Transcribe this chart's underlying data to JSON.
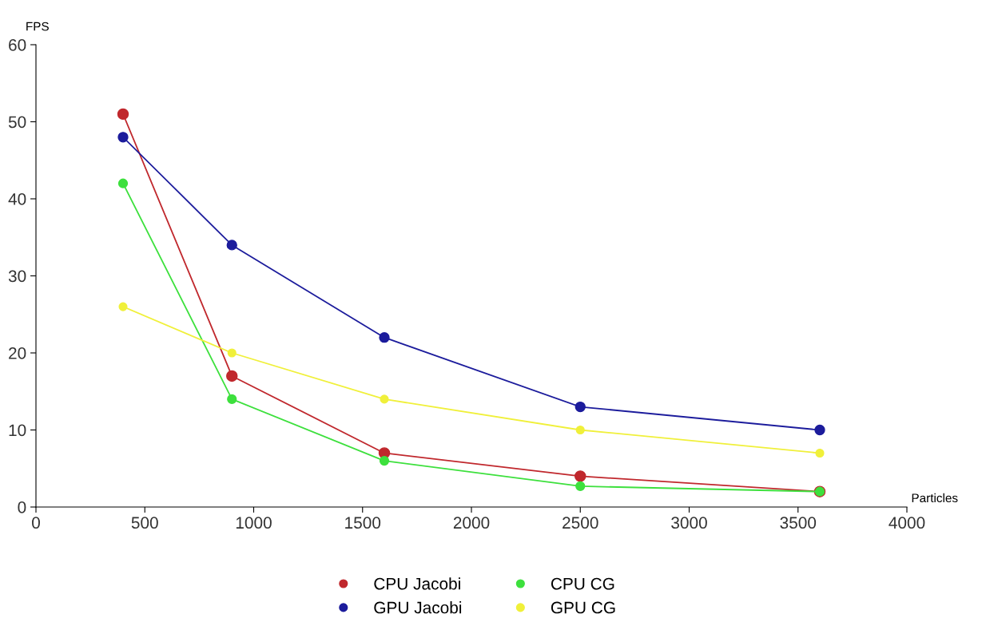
{
  "chart_data": {
    "type": "line",
    "xlabel": "Particles",
    "ylabel": "FPS",
    "x": [
      400,
      900,
      1600,
      2500,
      3600
    ],
    "series": [
      {
        "name": "CPU Jacobi",
        "color": "#c0282d",
        "values": [
          51,
          17,
          7,
          4,
          2
        ]
      },
      {
        "name": "GPU Jacobi",
        "color": "#1c1c9c",
        "values": [
          48,
          34,
          22,
          13,
          10
        ]
      },
      {
        "name": "CPU CG",
        "color": "#3de03d",
        "values": [
          42,
          14,
          6,
          2.7,
          2
        ]
      },
      {
        "name": "GPU CG",
        "color": "#f0f03a",
        "values": [
          26,
          20,
          14,
          10,
          7
        ]
      }
    ],
    "xlim": [
      0,
      4000
    ],
    "xticks": [
      0,
      500,
      1000,
      1500,
      2000,
      2500,
      3000,
      3500,
      4000
    ],
    "ylim": [
      0,
      60
    ],
    "yticks": [
      0,
      10,
      20,
      30,
      40,
      50,
      60
    ],
    "grid": false,
    "legend": "bottom",
    "marker": "circle",
    "line_style": "solid"
  }
}
